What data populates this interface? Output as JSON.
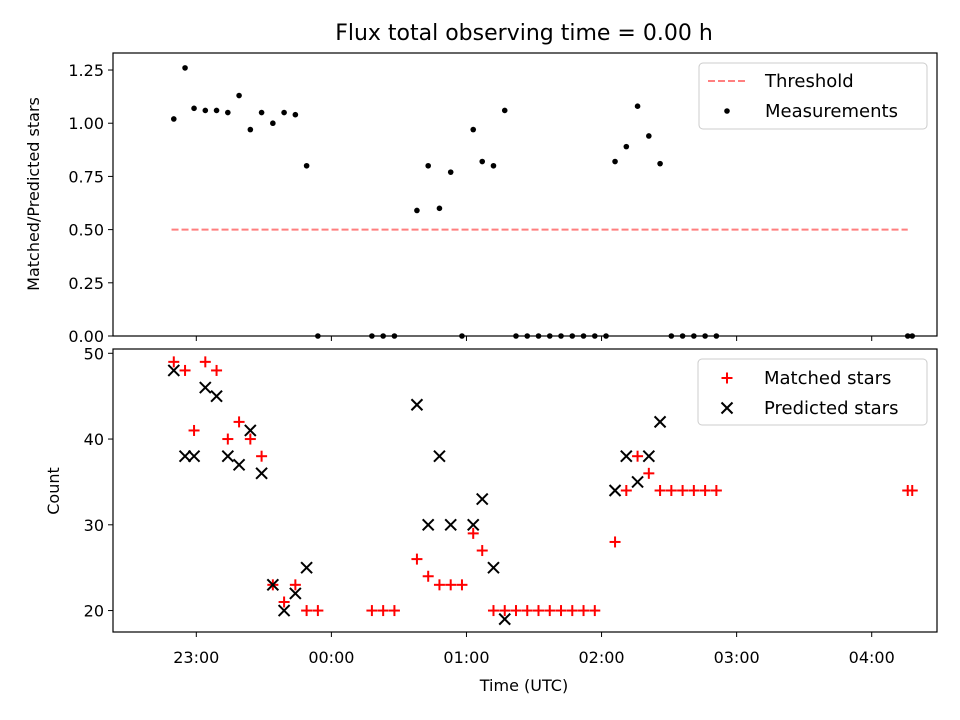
{
  "chart_data": [
    {
      "type": "scatter",
      "title": "Flux total observing time = 0.00 h",
      "ylabel": "Matched/Predicted stars",
      "xlabel": "",
      "ylim": [
        0,
        1.33
      ],
      "xlim": [
        "22:23",
        "04:29"
      ],
      "yticks": [
        "0.00",
        "0.25",
        "0.50",
        "0.75",
        "1.00",
        "1.25"
      ],
      "grid": false,
      "legend_position": "top-right",
      "threshold": {
        "name": "Threshold",
        "value": 0.5,
        "x_range": [
          "22:49",
          "04:16"
        ],
        "color": "#ff7f7f",
        "style": "dashed"
      },
      "series": [
        {
          "name": "Measurements",
          "color": "#000000",
          "marker": "dot",
          "points": [
            [
              "22:50",
              1.02
            ],
            [
              "22:55",
              1.26
            ],
            [
              "22:59",
              1.07
            ],
            [
              "23:04",
              1.06
            ],
            [
              "23:09",
              1.06
            ],
            [
              "23:14",
              1.05
            ],
            [
              "23:19",
              1.13
            ],
            [
              "23:24",
              0.97
            ],
            [
              "23:29",
              1.05
            ],
            [
              "23:34",
              1.0
            ],
            [
              "23:39",
              1.05
            ],
            [
              "23:44",
              1.04
            ],
            [
              "23:49",
              0.8
            ],
            [
              "23:54",
              0.0
            ],
            [
              "00:18",
              0.0
            ],
            [
              "00:23",
              0.0
            ],
            [
              "00:28",
              0.0
            ],
            [
              "00:38",
              0.59
            ],
            [
              "00:43",
              0.8
            ],
            [
              "00:48",
              0.6
            ],
            [
              "00:53",
              0.77
            ],
            [
              "00:58",
              0.0
            ],
            [
              "01:03",
              0.97
            ],
            [
              "01:07",
              0.82
            ],
            [
              "01:12",
              0.8
            ],
            [
              "01:17",
              1.06
            ],
            [
              "01:22",
              0.0
            ],
            [
              "01:27",
              0.0
            ],
            [
              "01:32",
              0.0
            ],
            [
              "01:37",
              0.0
            ],
            [
              "01:42",
              0.0
            ],
            [
              "01:47",
              0.0
            ],
            [
              "01:52",
              0.0
            ],
            [
              "01:57",
              0.0
            ],
            [
              "02:02",
              0.0
            ],
            [
              "02:06",
              0.82
            ],
            [
              "02:11",
              0.89
            ],
            [
              "02:16",
              1.08
            ],
            [
              "02:21",
              0.94
            ],
            [
              "02:26",
              0.81
            ],
            [
              "02:31",
              0.0
            ],
            [
              "02:36",
              0.0
            ],
            [
              "02:41",
              0.0
            ],
            [
              "02:46",
              0.0
            ],
            [
              "02:51",
              0.0
            ],
            [
              "04:16",
              0.0
            ],
            [
              "04:18",
              0.0
            ]
          ]
        }
      ]
    },
    {
      "type": "scatter",
      "title": "",
      "ylabel": "Count",
      "xlabel": "Time (UTC)",
      "ylim": [
        17.5,
        50.5
      ],
      "xlim": [
        "22:23",
        "04:29"
      ],
      "yticks": [
        "20",
        "30",
        "40",
        "50"
      ],
      "xticks": [
        "23:00",
        "00:00",
        "01:00",
        "02:00",
        "03:00",
        "04:00"
      ],
      "grid": false,
      "legend_position": "top-right",
      "series": [
        {
          "name": "Matched stars",
          "color": "#ff0000",
          "marker": "plus",
          "points": [
            [
              "22:50",
              49
            ],
            [
              "22:55",
              48
            ],
            [
              "22:59",
              41
            ],
            [
              "23:04",
              49
            ],
            [
              "23:09",
              48
            ],
            [
              "23:14",
              40
            ],
            [
              "23:19",
              42
            ],
            [
              "23:24",
              40
            ],
            [
              "23:29",
              38
            ],
            [
              "23:34",
              23
            ],
            [
              "23:39",
              21
            ],
            [
              "23:44",
              23
            ],
            [
              "23:49",
              20
            ],
            [
              "23:54",
              20
            ],
            [
              "00:18",
              20
            ],
            [
              "00:23",
              20
            ],
            [
              "00:28",
              20
            ],
            [
              "00:38",
              26
            ],
            [
              "00:43",
              24
            ],
            [
              "00:48",
              23
            ],
            [
              "00:53",
              23
            ],
            [
              "00:58",
              23
            ],
            [
              "01:03",
              29
            ],
            [
              "01:07",
              27
            ],
            [
              "01:12",
              20
            ],
            [
              "01:17",
              20
            ],
            [
              "01:22",
              20
            ],
            [
              "01:27",
              20
            ],
            [
              "01:32",
              20
            ],
            [
              "01:37",
              20
            ],
            [
              "01:42",
              20
            ],
            [
              "01:47",
              20
            ],
            [
              "01:52",
              20
            ],
            [
              "01:57",
              20
            ],
            [
              "02:06",
              28
            ],
            [
              "02:11",
              34
            ],
            [
              "02:16",
              38
            ],
            [
              "02:21",
              36
            ],
            [
              "02:26",
              34
            ],
            [
              "02:31",
              34
            ],
            [
              "02:36",
              34
            ],
            [
              "02:41",
              34
            ],
            [
              "02:46",
              34
            ],
            [
              "02:51",
              34
            ],
            [
              "04:16",
              34
            ],
            [
              "04:18",
              34
            ]
          ]
        },
        {
          "name": "Predicted stars",
          "color": "#000000",
          "marker": "x",
          "points": [
            [
              "22:50",
              48
            ],
            [
              "22:55",
              38
            ],
            [
              "22:59",
              38
            ],
            [
              "23:04",
              46
            ],
            [
              "23:09",
              45
            ],
            [
              "23:14",
              38
            ],
            [
              "23:19",
              37
            ],
            [
              "23:24",
              41
            ],
            [
              "23:29",
              36
            ],
            [
              "23:34",
              23
            ],
            [
              "23:39",
              20
            ],
            [
              "23:44",
              22
            ],
            [
              "23:49",
              25
            ],
            [
              "00:38",
              44
            ],
            [
              "00:43",
              30
            ],
            [
              "00:48",
              38
            ],
            [
              "00:53",
              30
            ],
            [
              "01:03",
              30
            ],
            [
              "01:07",
              33
            ],
            [
              "01:12",
              25
            ],
            [
              "01:17",
              19
            ],
            [
              "02:06",
              34
            ],
            [
              "02:11",
              38
            ],
            [
              "02:16",
              35
            ],
            [
              "02:21",
              38
            ],
            [
              "02:26",
              42
            ]
          ]
        }
      ]
    }
  ]
}
